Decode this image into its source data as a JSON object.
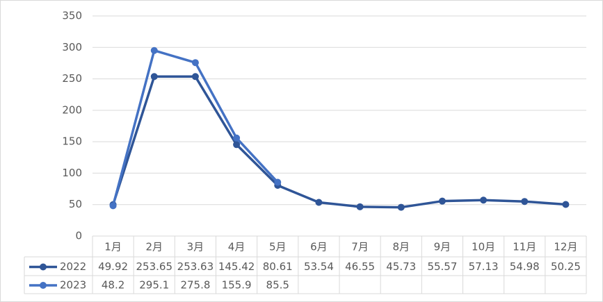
{
  "chart_data": {
    "type": "line",
    "categories": [
      "1月",
      "2月",
      "3月",
      "4月",
      "5月",
      "6月",
      "7月",
      "8月",
      "9月",
      "10月",
      "11月",
      "12月"
    ],
    "series": [
      {
        "name": "2022",
        "color": "#2f5597",
        "values": [
          49.92,
          253.65,
          253.63,
          145.42,
          80.61,
          53.54,
          46.55,
          45.73,
          55.57,
          57.13,
          54.98,
          50.25
        ]
      },
      {
        "name": "2023",
        "color": "#4472c4",
        "values": [
          48.2,
          295.1,
          275.8,
          155.9,
          85.5,
          null,
          null,
          null,
          null,
          null,
          null,
          null
        ]
      }
    ],
    "ylim": [
      0,
      350
    ],
    "yticks": [
      0,
      50,
      100,
      150,
      200,
      250,
      300,
      350
    ],
    "grid": true,
    "data_table": true
  }
}
